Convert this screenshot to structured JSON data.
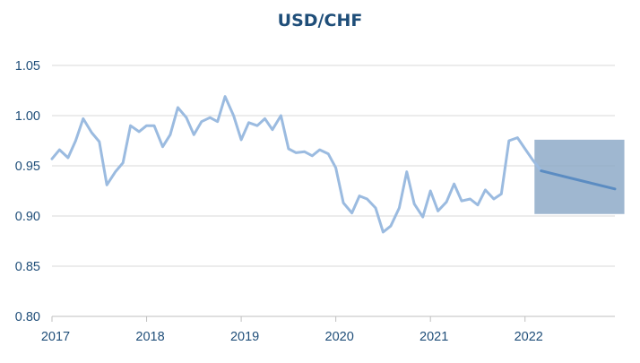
{
  "chart_data": {
    "type": "line",
    "title": "USD/CHF",
    "xlabel": "",
    "ylabel": "",
    "xlim": [
      2017.0,
      2022.95
    ],
    "ylim": [
      0.8,
      1.05
    ],
    "x_ticks": [
      2017,
      2018,
      2019,
      2020,
      2021,
      2022
    ],
    "x_tick_labels": [
      "2017",
      "2018",
      "2019",
      "2020",
      "2021",
      "2022"
    ],
    "y_ticks": [
      0.8,
      0.85,
      0.9,
      0.95,
      1.0,
      1.05
    ],
    "y_tick_labels": [
      "0.80",
      "0.85",
      "0.90",
      "0.95",
      "1.00",
      "1.05"
    ],
    "grid": {
      "horizontal": true,
      "vertical": false
    },
    "legend": "none",
    "colors": {
      "title": "#1f4e79",
      "tick_text": "#1f4e79",
      "grid": "#d9d9d9",
      "axis": "#bfbfbf",
      "history_line": "#9bbbe0",
      "forecast_line": "#5b8cc2",
      "forecast_band": "#8aa7c6"
    },
    "series": [
      {
        "role": "history",
        "points": [
          [
            2017.0,
            0.957
          ],
          [
            2017.08,
            0.966
          ],
          [
            2017.17,
            0.958
          ],
          [
            2017.25,
            0.975
          ],
          [
            2017.33,
            0.997
          ],
          [
            2017.42,
            0.983
          ],
          [
            2017.5,
            0.974
          ],
          [
            2017.58,
            0.931
          ],
          [
            2017.67,
            0.944
          ],
          [
            2017.75,
            0.953
          ],
          [
            2017.83,
            0.99
          ],
          [
            2017.92,
            0.984
          ],
          [
            2018.0,
            0.99
          ],
          [
            2018.08,
            0.99
          ],
          [
            2018.17,
            0.969
          ],
          [
            2018.25,
            0.981
          ],
          [
            2018.33,
            1.008
          ],
          [
            2018.42,
            0.998
          ],
          [
            2018.5,
            0.981
          ],
          [
            2018.58,
            0.994
          ],
          [
            2018.67,
            0.998
          ],
          [
            2018.75,
            0.994
          ],
          [
            2018.83,
            1.019
          ],
          [
            2018.92,
            1.0
          ],
          [
            2019.0,
            0.976
          ],
          [
            2019.08,
            0.993
          ],
          [
            2019.17,
            0.99
          ],
          [
            2019.25,
            0.997
          ],
          [
            2019.33,
            0.986
          ],
          [
            2019.42,
            1.0
          ],
          [
            2019.5,
            0.967
          ],
          [
            2019.58,
            0.963
          ],
          [
            2019.67,
            0.964
          ],
          [
            2019.75,
            0.96
          ],
          [
            2019.83,
            0.966
          ],
          [
            2019.92,
            0.962
          ],
          [
            2020.0,
            0.948
          ],
          [
            2020.08,
            0.913
          ],
          [
            2020.17,
            0.903
          ],
          [
            2020.25,
            0.92
          ],
          [
            2020.33,
            0.917
          ],
          [
            2020.42,
            0.908
          ],
          [
            2020.5,
            0.884
          ],
          [
            2020.58,
            0.89
          ],
          [
            2020.67,
            0.908
          ],
          [
            2020.75,
            0.944
          ],
          [
            2020.83,
            0.912
          ],
          [
            2020.92,
            0.899
          ],
          [
            2021.0,
            0.925
          ],
          [
            2021.08,
            0.905
          ],
          [
            2021.17,
            0.914
          ],
          [
            2021.25,
            0.932
          ],
          [
            2021.33,
            0.915
          ],
          [
            2021.42,
            0.917
          ],
          [
            2021.5,
            0.911
          ],
          [
            2021.58,
            0.926
          ],
          [
            2021.67,
            0.917
          ],
          [
            2021.75,
            0.922
          ],
          [
            2021.83,
            0.975
          ],
          [
            2021.92,
            0.978
          ],
          [
            2022.0,
            0.967
          ],
          [
            2022.08,
            0.956
          ],
          [
            2022.17,
            0.945
          ]
        ]
      },
      {
        "role": "forecast",
        "points": [
          [
            2022.17,
            0.945
          ],
          [
            2022.95,
            0.927
          ]
        ]
      }
    ],
    "forecast_band": {
      "x": [
        2022.1,
        2023.05
      ],
      "y": [
        0.902,
        0.976
      ]
    }
  }
}
